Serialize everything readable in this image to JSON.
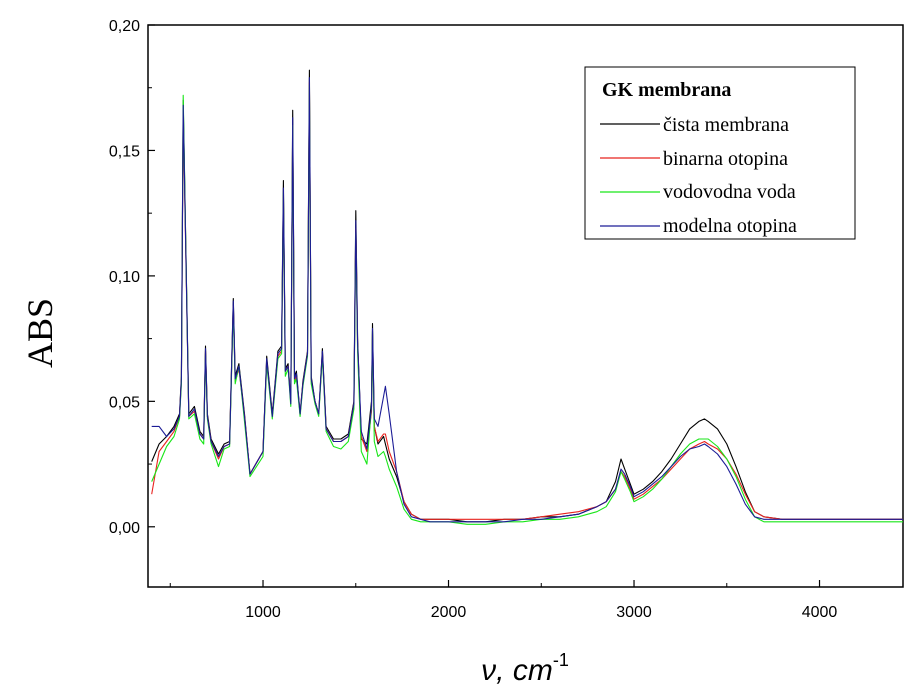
{
  "chart_data": {
    "type": "line",
    "xlabel": "ν, cm",
    "xlabel_sup": "-1",
    "ylabel": "ABS",
    "xlim": [
      380,
      4450
    ],
    "ylim": [
      -0.024,
      0.2
    ],
    "x_ticks": [
      1000,
      2000,
      3000,
      4000
    ],
    "x_tick_labels": [
      "1000",
      "2000",
      "3000",
      "4000"
    ],
    "y_ticks": [
      0,
      0.05,
      0.1,
      0.15,
      0.2
    ],
    "y_tick_labels": [
      "0,00",
      "0,05",
      "0,10",
      "0,15",
      "0,20"
    ],
    "grid": false,
    "legend": {
      "title": "GK membrana",
      "placement": "top-right",
      "entries": [
        "čista membrana",
        "binarna otopina",
        "vodovodna voda",
        "modelna otopina"
      ]
    },
    "colors": [
      "#000000",
      "#e8231f",
      "#19e619",
      "#1c1c96"
    ],
    "series": [
      {
        "name": "čista membrana",
        "color": "#000000",
        "x": [
          400,
          440,
          480,
          520,
          550,
          560,
          570,
          600,
          630,
          660,
          680,
          690,
          700,
          720,
          760,
          790,
          820,
          840,
          850,
          870,
          900,
          930,
          1000,
          1020,
          1050,
          1080,
          1100,
          1110,
          1120,
          1135,
          1150,
          1160,
          1170,
          1180,
          1200,
          1215,
          1240,
          1250,
          1260,
          1280,
          1300,
          1320,
          1340,
          1380,
          1420,
          1460,
          1490,
          1500,
          1510,
          1530,
          1560,
          1585,
          1590,
          1600,
          1620,
          1650,
          1660,
          1680,
          1720,
          1760,
          1800,
          1850,
          1900,
          2000,
          2100,
          2200,
          2300,
          2400,
          2500,
          2600,
          2700,
          2800,
          2850,
          2900,
          2930,
          2950,
          2980,
          3000,
          3050,
          3100,
          3150,
          3200,
          3250,
          3300,
          3350,
          3380,
          3400,
          3450,
          3500,
          3550,
          3600,
          3650,
          3700,
          3800,
          3900,
          4000,
          4100,
          4200,
          4300,
          4450
        ],
        "y": [
          0.026,
          0.033,
          0.036,
          0.04,
          0.045,
          0.06,
          0.17,
          0.045,
          0.048,
          0.038,
          0.036,
          0.072,
          0.045,
          0.035,
          0.029,
          0.033,
          0.034,
          0.091,
          0.06,
          0.065,
          0.045,
          0.021,
          0.03,
          0.068,
          0.045,
          0.07,
          0.072,
          0.138,
          0.063,
          0.065,
          0.05,
          0.166,
          0.06,
          0.062,
          0.045,
          0.058,
          0.07,
          0.182,
          0.06,
          0.05,
          0.045,
          0.071,
          0.04,
          0.035,
          0.035,
          0.037,
          0.05,
          0.126,
          0.075,
          0.035,
          0.033,
          0.05,
          0.081,
          0.04,
          0.033,
          0.036,
          0.033,
          0.027,
          0.02,
          0.01,
          0.005,
          0.003,
          0.003,
          0.003,
          0.002,
          0.002,
          0.003,
          0.003,
          0.004,
          0.004,
          0.005,
          0.008,
          0.01,
          0.018,
          0.027,
          0.023,
          0.017,
          0.013,
          0.015,
          0.018,
          0.022,
          0.027,
          0.033,
          0.039,
          0.042,
          0.043,
          0.042,
          0.039,
          0.033,
          0.024,
          0.014,
          0.006,
          0.004,
          0.003,
          0.003,
          0.003,
          0.003,
          0.003,
          0.003,
          0.003
        ]
      },
      {
        "name": "binarna otopina",
        "color": "#e8231f",
        "x": [
          400,
          440,
          480,
          520,
          550,
          560,
          570,
          600,
          630,
          660,
          680,
          690,
          700,
          720,
          760,
          790,
          820,
          840,
          850,
          870,
          900,
          930,
          1000,
          1020,
          1050,
          1080,
          1100,
          1110,
          1120,
          1135,
          1150,
          1160,
          1170,
          1180,
          1200,
          1215,
          1240,
          1250,
          1260,
          1280,
          1300,
          1320,
          1340,
          1380,
          1420,
          1460,
          1490,
          1500,
          1510,
          1530,
          1560,
          1585,
          1590,
          1600,
          1620,
          1650,
          1660,
          1680,
          1720,
          1760,
          1800,
          1850,
          1900,
          2000,
          2100,
          2200,
          2300,
          2400,
          2500,
          2600,
          2700,
          2800,
          2850,
          2900,
          2930,
          2950,
          2980,
          3000,
          3050,
          3100,
          3150,
          3200,
          3250,
          3300,
          3350,
          3380,
          3400,
          3450,
          3500,
          3550,
          3600,
          3650,
          3700,
          3800,
          3900,
          4000,
          4100,
          4200,
          4300,
          4450
        ],
        "y": [
          0.013,
          0.03,
          0.034,
          0.038,
          0.044,
          0.058,
          0.165,
          0.044,
          0.046,
          0.037,
          0.035,
          0.07,
          0.044,
          0.034,
          0.027,
          0.032,
          0.033,
          0.088,
          0.058,
          0.063,
          0.044,
          0.021,
          0.03,
          0.066,
          0.044,
          0.068,
          0.07,
          0.132,
          0.062,
          0.064,
          0.05,
          0.16,
          0.058,
          0.06,
          0.045,
          0.057,
          0.069,
          0.177,
          0.058,
          0.05,
          0.045,
          0.069,
          0.039,
          0.034,
          0.034,
          0.036,
          0.049,
          0.119,
          0.072,
          0.036,
          0.03,
          0.046,
          0.077,
          0.04,
          0.034,
          0.037,
          0.037,
          0.03,
          0.022,
          0.01,
          0.005,
          0.003,
          0.003,
          0.003,
          0.003,
          0.003,
          0.003,
          0.003,
          0.004,
          0.005,
          0.006,
          0.008,
          0.01,
          0.015,
          0.022,
          0.02,
          0.015,
          0.011,
          0.013,
          0.016,
          0.019,
          0.023,
          0.027,
          0.031,
          0.033,
          0.034,
          0.033,
          0.031,
          0.027,
          0.021,
          0.013,
          0.006,
          0.004,
          0.003,
          0.003,
          0.003,
          0.003,
          0.003,
          0.003,
          0.003
        ]
      },
      {
        "name": "vodovodna voda",
        "color": "#19e619",
        "x": [
          400,
          440,
          480,
          520,
          550,
          560,
          570,
          600,
          630,
          660,
          680,
          690,
          700,
          720,
          760,
          790,
          820,
          840,
          850,
          870,
          900,
          930,
          1000,
          1020,
          1050,
          1080,
          1100,
          1110,
          1120,
          1135,
          1150,
          1160,
          1170,
          1180,
          1200,
          1215,
          1240,
          1250,
          1260,
          1280,
          1300,
          1320,
          1340,
          1380,
          1420,
          1460,
          1490,
          1500,
          1510,
          1530,
          1560,
          1585,
          1590,
          1600,
          1620,
          1650,
          1660,
          1680,
          1720,
          1760,
          1800,
          1850,
          1900,
          2000,
          2100,
          2200,
          2300,
          2400,
          2500,
          2600,
          2700,
          2800,
          2850,
          2900,
          2930,
          2950,
          2980,
          3000,
          3050,
          3100,
          3150,
          3200,
          3250,
          3300,
          3350,
          3380,
          3400,
          3450,
          3500,
          3550,
          3600,
          3650,
          3700,
          3800,
          3900,
          4000,
          4100,
          4200,
          4300,
          4450
        ],
        "y": [
          0.018,
          0.025,
          0.032,
          0.036,
          0.043,
          0.057,
          0.172,
          0.043,
          0.045,
          0.035,
          0.033,
          0.069,
          0.043,
          0.033,
          0.024,
          0.031,
          0.032,
          0.087,
          0.057,
          0.064,
          0.042,
          0.02,
          0.028,
          0.065,
          0.043,
          0.067,
          0.069,
          0.133,
          0.06,
          0.063,
          0.048,
          0.16,
          0.057,
          0.059,
          0.044,
          0.056,
          0.068,
          0.176,
          0.057,
          0.049,
          0.044,
          0.068,
          0.038,
          0.032,
          0.031,
          0.034,
          0.047,
          0.117,
          0.07,
          0.03,
          0.025,
          0.048,
          0.078,
          0.034,
          0.028,
          0.03,
          0.028,
          0.023,
          0.016,
          0.007,
          0.003,
          0.002,
          0.002,
          0.002,
          0.001,
          0.001,
          0.002,
          0.002,
          0.003,
          0.003,
          0.004,
          0.006,
          0.008,
          0.014,
          0.022,
          0.019,
          0.014,
          0.01,
          0.012,
          0.015,
          0.019,
          0.024,
          0.029,
          0.033,
          0.035,
          0.035,
          0.035,
          0.032,
          0.027,
          0.02,
          0.011,
          0.004,
          0.002,
          0.002,
          0.002,
          0.002,
          0.002,
          0.002,
          0.002,
          0.002
        ]
      },
      {
        "name": "modelna otopina",
        "color": "#1c1c96",
        "x": [
          400,
          440,
          480,
          520,
          550,
          560,
          570,
          600,
          630,
          660,
          680,
          690,
          700,
          720,
          760,
          790,
          820,
          840,
          850,
          870,
          900,
          930,
          1000,
          1020,
          1050,
          1080,
          1100,
          1110,
          1120,
          1135,
          1150,
          1160,
          1170,
          1180,
          1200,
          1215,
          1240,
          1250,
          1260,
          1280,
          1300,
          1320,
          1340,
          1380,
          1420,
          1460,
          1490,
          1500,
          1510,
          1530,
          1560,
          1585,
          1590,
          1600,
          1620,
          1650,
          1660,
          1680,
          1720,
          1760,
          1800,
          1850,
          1900,
          2000,
          2100,
          2200,
          2300,
          2400,
          2500,
          2600,
          2700,
          2800,
          2850,
          2900,
          2930,
          2950,
          2980,
          3000,
          3050,
          3100,
          3150,
          3200,
          3250,
          3300,
          3350,
          3380,
          3400,
          3450,
          3500,
          3550,
          3600,
          3650,
          3700,
          3800,
          3900,
          4000,
          4100,
          4200,
          4300,
          4450
        ],
        "y": [
          0.04,
          0.04,
          0.036,
          0.039,
          0.044,
          0.059,
          0.168,
          0.044,
          0.047,
          0.037,
          0.035,
          0.071,
          0.044,
          0.034,
          0.028,
          0.032,
          0.033,
          0.09,
          0.059,
          0.064,
          0.044,
          0.021,
          0.03,
          0.067,
          0.044,
          0.069,
          0.071,
          0.135,
          0.062,
          0.064,
          0.049,
          0.163,
          0.059,
          0.061,
          0.045,
          0.057,
          0.069,
          0.179,
          0.059,
          0.05,
          0.045,
          0.07,
          0.039,
          0.034,
          0.034,
          0.036,
          0.049,
          0.122,
          0.073,
          0.038,
          0.031,
          0.048,
          0.079,
          0.043,
          0.04,
          0.052,
          0.056,
          0.045,
          0.022,
          0.009,
          0.004,
          0.003,
          0.002,
          0.002,
          0.002,
          0.002,
          0.002,
          0.003,
          0.003,
          0.004,
          0.005,
          0.008,
          0.01,
          0.015,
          0.023,
          0.021,
          0.016,
          0.012,
          0.014,
          0.017,
          0.02,
          0.024,
          0.028,
          0.031,
          0.032,
          0.033,
          0.032,
          0.029,
          0.024,
          0.017,
          0.009,
          0.004,
          0.003,
          0.003,
          0.003,
          0.003,
          0.003,
          0.003,
          0.003,
          0.003
        ]
      }
    ]
  }
}
